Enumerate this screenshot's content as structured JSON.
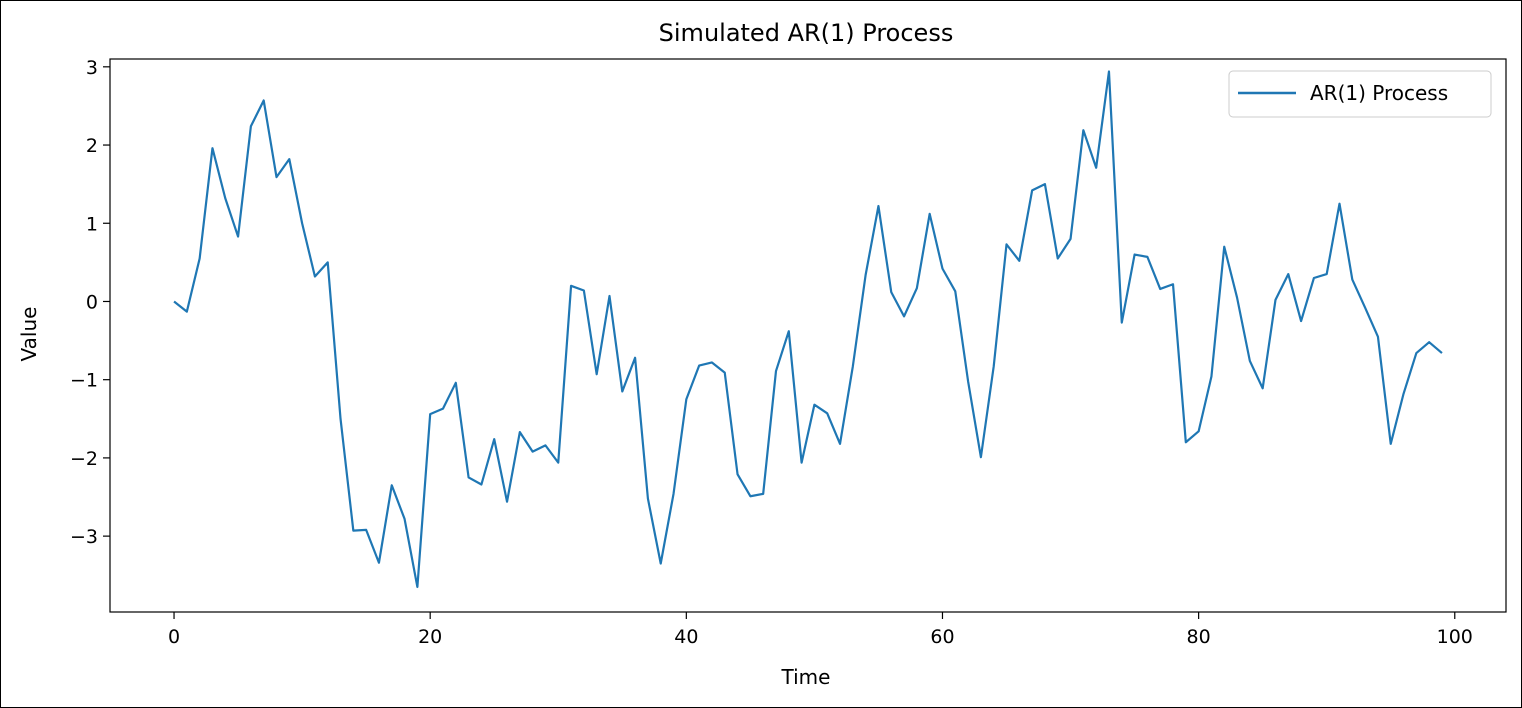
{
  "chart_data": {
    "type": "line",
    "title": "Simulated AR(1) Process",
    "xlabel": "Time",
    "ylabel": "Value",
    "xlim": [
      -5,
      104
    ],
    "ylim": [
      -3.97,
      3.1
    ],
    "x_ticks": [
      0,
      20,
      40,
      60,
      80,
      100
    ],
    "x_tick_labels": [
      "0",
      "20",
      "40",
      "60",
      "80",
      "100"
    ],
    "y_ticks": [
      -3,
      -2,
      -1,
      0,
      1,
      2,
      3
    ],
    "y_tick_labels": [
      "−3",
      "−2",
      "−1",
      "0",
      "1",
      "2",
      "3"
    ],
    "grid": false,
    "legend_position": "top-right",
    "series": [
      {
        "name": "AR(1) Process",
        "color": "#1f77b4",
        "x": [
          0,
          1,
          2,
          3,
          4,
          5,
          6,
          7,
          8,
          9,
          10,
          11,
          12,
          13,
          14,
          15,
          16,
          17,
          18,
          19,
          20,
          21,
          22,
          23,
          24,
          25,
          26,
          27,
          28,
          29,
          30,
          31,
          32,
          33,
          34,
          35,
          36,
          37,
          38,
          39,
          40,
          41,
          42,
          43,
          44,
          45,
          46,
          47,
          48,
          49,
          50,
          51,
          52,
          53,
          54,
          55,
          56,
          57,
          58,
          59,
          60,
          61,
          62,
          63,
          64,
          65,
          66,
          67,
          68,
          69,
          70,
          71,
          72,
          73,
          74,
          75,
          76,
          77,
          78,
          79,
          80,
          81,
          82,
          83,
          84,
          85,
          86,
          87,
          88,
          89,
          90,
          91,
          92,
          93,
          94,
          95,
          96,
          97,
          98,
          99
        ],
        "values": [
          0.0,
          -0.13,
          0.55,
          1.96,
          1.32,
          0.83,
          2.24,
          2.57,
          1.59,
          1.82,
          1.0,
          0.32,
          0.5,
          -1.5,
          -2.93,
          -2.92,
          -3.34,
          -2.35,
          -2.78,
          -3.65,
          -1.44,
          -1.37,
          -1.04,
          -2.25,
          -2.34,
          -1.76,
          -2.56,
          -1.67,
          -1.92,
          -1.84,
          -2.06,
          0.2,
          0.14,
          -0.93,
          0.07,
          -1.15,
          -0.72,
          -2.52,
          -3.35,
          -2.46,
          -1.25,
          -0.82,
          -0.78,
          -0.91,
          -2.21,
          -2.49,
          -2.46,
          -0.89,
          -0.38,
          -2.06,
          -1.32,
          -1.43,
          -1.82,
          -0.83,
          0.34,
          1.22,
          0.12,
          -0.19,
          0.17,
          1.12,
          0.42,
          0.13,
          -1.02,
          -1.99,
          -0.83,
          0.73,
          0.52,
          1.42,
          1.5,
          0.55,
          0.8,
          2.19,
          1.71,
          2.94,
          -0.27,
          0.6,
          0.57,
          0.16,
          0.22,
          -1.8,
          -1.66,
          -0.96,
          0.7,
          0.05,
          -0.76,
          -1.11,
          0.02,
          0.35,
          -0.25,
          0.3,
          0.35,
          1.25,
          0.28,
          -0.08,
          -0.45,
          -1.82,
          -1.18,
          -0.66,
          -0.52,
          -0.66
        ]
      }
    ]
  }
}
